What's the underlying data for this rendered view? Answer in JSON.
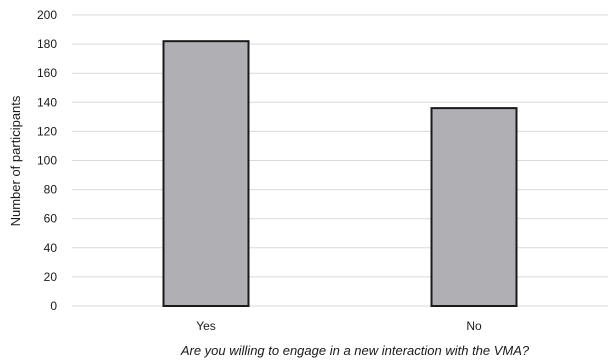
{
  "chart_data": {
    "type": "bar",
    "categories": [
      "Yes",
      "No"
    ],
    "values": [
      182,
      136
    ],
    "title": "",
    "xlabel": "Are you willing to engage in a new interaction with the VMA?",
    "ylabel": "Number of participants",
    "ylim": [
      0,
      200
    ],
    "yticks": [
      0,
      20,
      40,
      60,
      80,
      100,
      120,
      140,
      160,
      180,
      200
    ],
    "grid": true,
    "legend": "none",
    "bar_color": "#b0b0b4",
    "bar_edge_color": "#1a1a1a"
  }
}
